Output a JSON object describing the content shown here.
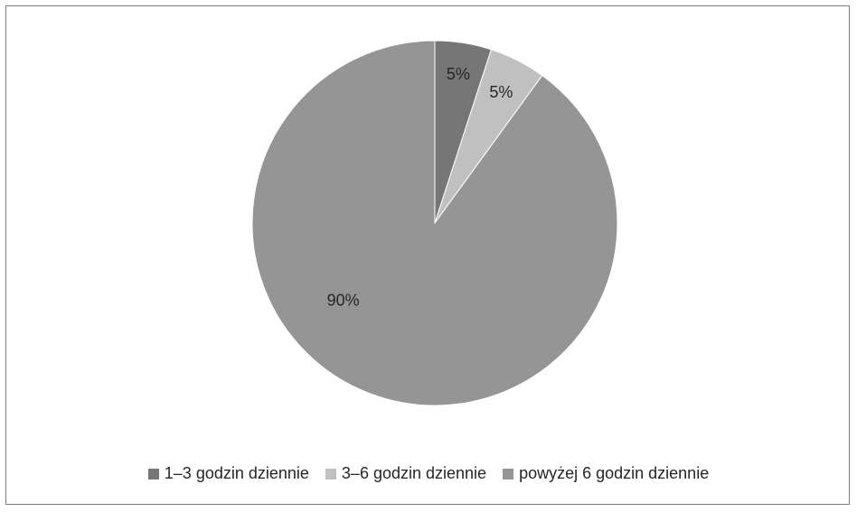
{
  "chart_data": {
    "type": "pie",
    "title": "",
    "categories": [
      "1–3 godzin dziennie",
      "3–6 godzin dziennie",
      "powyżej 6 godzin dziennie"
    ],
    "values": [
      5,
      5,
      90
    ],
    "labels": [
      "5%",
      "5%",
      "90%"
    ],
    "colors": [
      "#767676",
      "#c0c0c0",
      "#959595"
    ],
    "legend_position": "bottom"
  }
}
